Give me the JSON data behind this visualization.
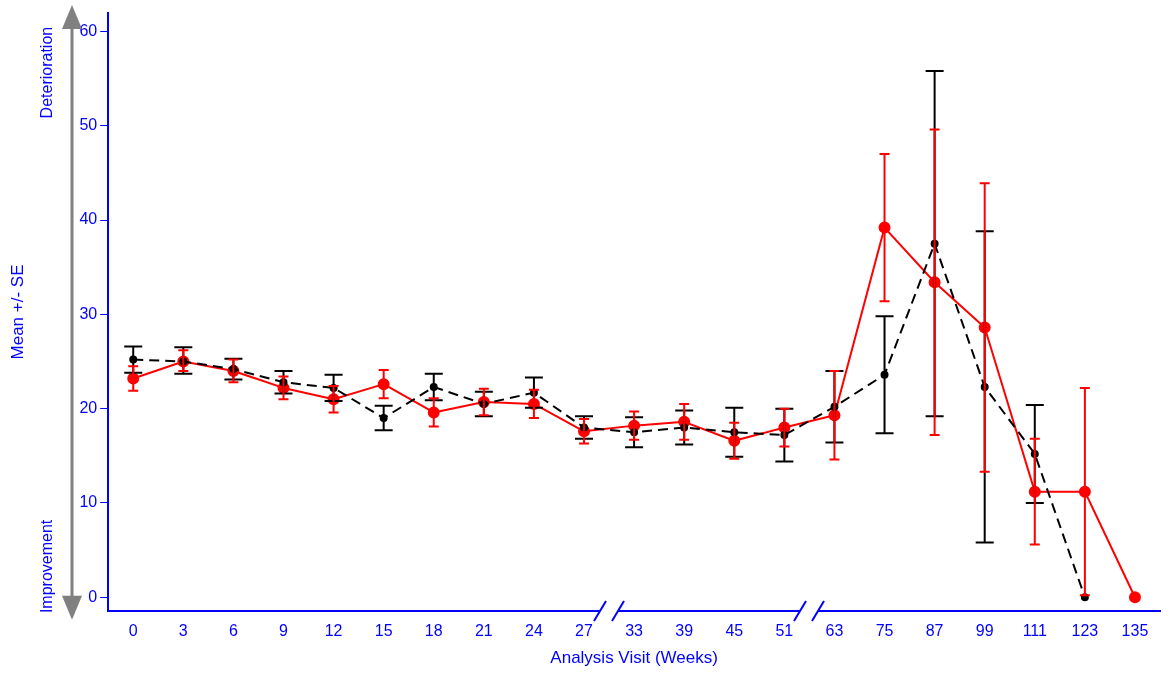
{
  "chart_data": {
    "type": "line",
    "xlabel": "Analysis Visit (Weeks)",
    "ylabel": "Mean +/- SE",
    "categories": [
      "0",
      "3",
      "6",
      "9",
      "12",
      "15",
      "18",
      "21",
      "24",
      "27",
      "33",
      "39",
      "45",
      "51",
      "63",
      "75",
      "87",
      "99",
      "111",
      "123",
      "135"
    ],
    "series": [
      {
        "color": "#000000",
        "line_style": "dashed",
        "values": [
          25.2,
          25.0,
          24.2,
          22.8,
          22.2,
          19.0,
          22.3,
          20.5,
          21.7,
          18.0,
          17.5,
          18.0,
          17.5,
          17.2,
          20.2,
          23.6,
          37.5,
          22.3,
          15.2,
          0,
          null
        ],
        "errors": [
          1.4,
          [
            23.7,
            26.5
          ],
          1.1,
          1.2,
          1.4,
          1.3,
          1.4,
          1.3,
          1.6,
          1.2,
          1.6,
          1.8,
          2.6,
          2.8,
          3.8,
          6.2,
          18.3,
          16.5,
          5.2,
          null,
          null
        ]
      },
      {
        "color": "#ff0000",
        "line_style": "solid",
        "values": [
          23.2,
          25.0,
          24.0,
          22.2,
          21.0,
          22.6,
          19.6,
          20.7,
          20.5,
          17.6,
          18.2,
          18.6,
          16.6,
          18.0,
          19.3,
          39.2,
          33.4,
          28.6,
          11.2,
          11.2,
          0
        ],
        "errors": [
          1.3,
          [
            24.0,
            26.2
          ],
          1.2,
          1.2,
          1.4,
          1.5,
          1.5,
          1.4,
          1.5,
          1.3,
          1.5,
          1.9,
          1.9,
          2.0,
          4.7,
          7.8,
          16.2,
          15.3,
          5.6,
          11.0,
          null
        ]
      }
    ],
    "ylim": [
      -1.5,
      62
    ],
    "yticks": [
      0,
      10,
      20,
      30,
      40,
      50,
      60
    ],
    "grid": false,
    "legend": false,
    "marker": "circle",
    "annotations": [
      "Deterioration",
      "Improvement"
    ]
  }
}
